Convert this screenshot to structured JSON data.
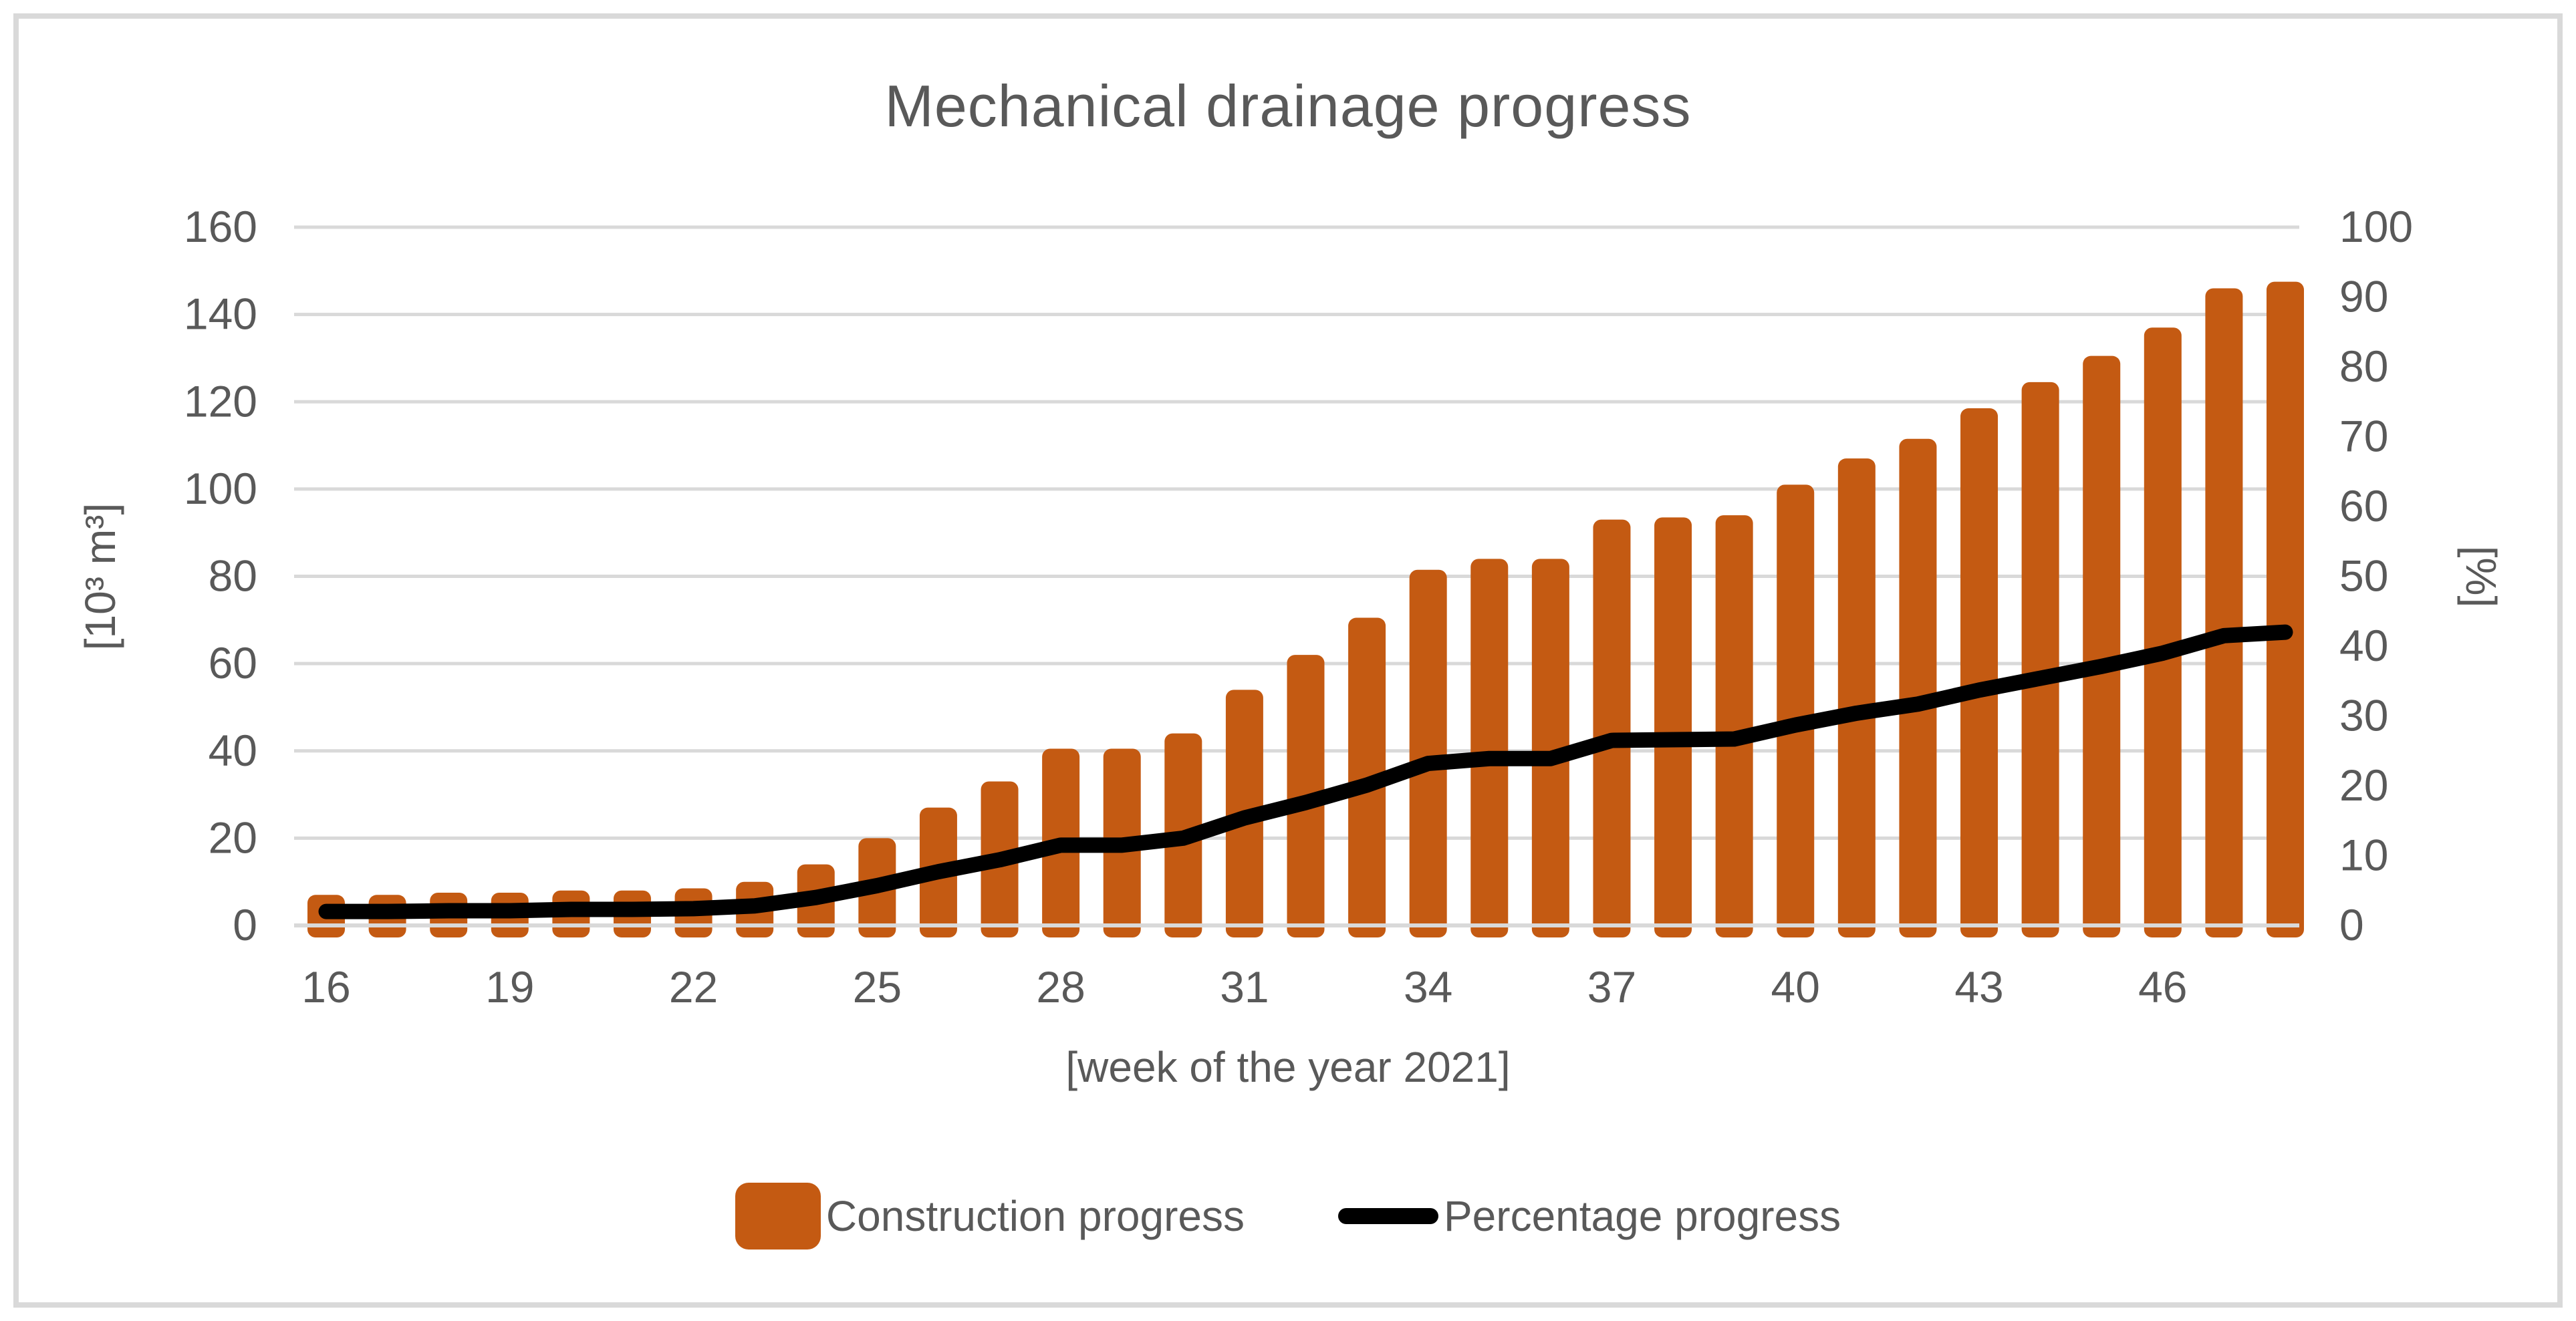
{
  "title": "Mechanical drainage progress",
  "left_axis": {
    "title": "[10³ m³]",
    "ticks": [
      0,
      20,
      40,
      60,
      80,
      100,
      120,
      140,
      160
    ],
    "min": 0,
    "max": 160
  },
  "right_axis": {
    "title": "[%]",
    "ticks": [
      0,
      10,
      20,
      30,
      40,
      50,
      60,
      70,
      80,
      90,
      100
    ],
    "min": 0,
    "max": 100
  },
  "x_axis": {
    "title": "[week of the year 2021]",
    "tick_labels": [
      "16",
      "19",
      "22",
      "25",
      "28",
      "31",
      "34",
      "37",
      "40",
      "43",
      "46"
    ]
  },
  "legend": {
    "items": [
      {
        "label": "Construction progress",
        "type": "bar",
        "color": "#c45a12"
      },
      {
        "label": "Percentage progress",
        "type": "line",
        "color": "#000000"
      }
    ]
  },
  "colors": {
    "bar": "#c45a12",
    "line": "#000000",
    "gridline": "#d9d9d9",
    "text": "#595959",
    "frame_border": "#d9d9d9",
    "background": "#ffffff"
  },
  "chart_data": {
    "type": "bar+line",
    "title": "Mechanical drainage progress",
    "xlabel": "[week of the year 2021]",
    "ylabel_left": "[10³ m³]",
    "ylabel_right": "[%]",
    "ylim_left": [
      0,
      160
    ],
    "ylim_right": [
      0,
      100
    ],
    "grid": true,
    "legend_position": "bottom",
    "x_tick_step_weeks": 3,
    "categories": [
      16,
      17,
      18,
      19,
      20,
      21,
      22,
      23,
      24,
      25,
      26,
      27,
      28,
      29,
      30,
      31,
      32,
      33,
      34,
      35,
      36,
      37,
      38,
      39,
      40,
      41,
      42,
      43,
      44,
      45,
      46,
      47,
      48
    ],
    "series": [
      {
        "name": "Construction progress",
        "type": "bar",
        "axis": "left",
        "units": "10³ m³",
        "values": [
          7,
          7,
          7.5,
          7.5,
          8,
          8,
          8.5,
          10,
          14,
          20,
          27,
          33,
          40.5,
          40.5,
          44,
          54,
          62,
          70.5,
          81.5,
          84,
          84,
          93,
          93.5,
          94,
          101,
          107,
          111.5,
          118.5,
          124.5,
          130.5,
          137,
          146,
          147.5
        ]
      },
      {
        "name": "Percentage progress",
        "type": "line",
        "axis": "right",
        "units": "%",
        "values": [
          2.0,
          2.0,
          2.1,
          2.1,
          2.3,
          2.3,
          2.4,
          2.8,
          4.0,
          5.7,
          7.7,
          9.4,
          11.5,
          11.5,
          12.5,
          15.4,
          17.6,
          20.1,
          23.2,
          23.9,
          23.9,
          26.5,
          26.6,
          26.7,
          28.7,
          30.4,
          31.7,
          33.7,
          35.4,
          37.1,
          39.0,
          41.5,
          42.0
        ]
      }
    ]
  }
}
